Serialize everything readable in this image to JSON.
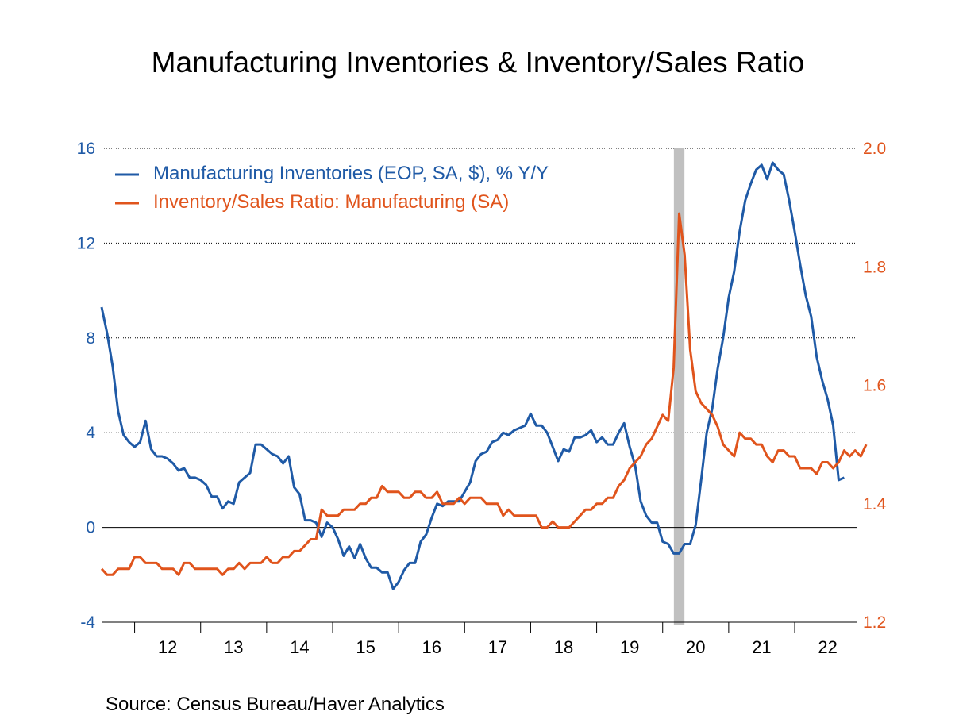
{
  "chart_data": {
    "type": "line",
    "title": "Manufacturing Inventories & Inventory/Sales Ratio",
    "source": "Source:  Census Bureau/Haver Analytics",
    "x_ticks": [
      "12",
      "13",
      "14",
      "15",
      "16",
      "17",
      "18",
      "19",
      "20",
      "21",
      "22"
    ],
    "y_left": {
      "ylim": [
        -4,
        16
      ],
      "ticks": [
        "16",
        "12",
        "8",
        "4",
        "0",
        "-4"
      ]
    },
    "y_right": {
      "ylim": [
        1.2,
        2.0
      ],
      "ticks": [
        "2.0",
        "1.8",
        "1.6",
        "1.4",
        "1.2"
      ]
    },
    "recession_shading": {
      "from": 2020.17,
      "to": 2020.33,
      "color": "#c0c0c0"
    },
    "grid": "horizontal dotted",
    "legend_placement": "top-left",
    "colors": {
      "left_axis": "#1f5aa6",
      "right_axis": "#e0541c"
    },
    "series": [
      {
        "name": "Manufacturing Inventories (EOP, SA, $), % Y/Y",
        "axis": "left",
        "color": "#1f5aa6",
        "x_start": 2011.5,
        "x_step": 0.0833333,
        "values": [
          9.3,
          8.2,
          6.8,
          4.9,
          3.9,
          3.6,
          3.4,
          3.6,
          4.5,
          3.3,
          3.0,
          3.0,
          2.9,
          2.7,
          2.4,
          2.5,
          2.1,
          2.1,
          2.0,
          1.8,
          1.3,
          1.3,
          0.8,
          1.1,
          1.0,
          1.9,
          2.1,
          2.3,
          3.5,
          3.5,
          3.3,
          3.1,
          3.0,
          2.7,
          3.0,
          1.7,
          1.4,
          0.3,
          0.3,
          0.2,
          -0.4,
          0.2,
          0.0,
          -0.5,
          -1.2,
          -0.8,
          -1.3,
          -0.7,
          -1.3,
          -1.7,
          -1.7,
          -1.9,
          -1.9,
          -2.6,
          -2.3,
          -1.8,
          -1.5,
          -1.5,
          -0.6,
          -0.3,
          0.4,
          1.0,
          0.9,
          1.1,
          1.1,
          1.1,
          1.5,
          1.9,
          2.8,
          3.1,
          3.2,
          3.6,
          3.7,
          4.0,
          3.9,
          4.1,
          4.2,
          4.3,
          4.8,
          4.3,
          4.3,
          4.0,
          3.4,
          2.8,
          3.3,
          3.2,
          3.8,
          3.8,
          3.9,
          4.1,
          3.6,
          3.8,
          3.5,
          3.5,
          4.0,
          4.4,
          3.4,
          2.6,
          1.1,
          0.5,
          0.2,
          0.2,
          -0.6,
          -0.7,
          -1.1,
          -1.1,
          -0.7,
          -0.7,
          0.1,
          2.0,
          4.0,
          5.0,
          6.7,
          8.0,
          9.7,
          10.8,
          12.5,
          13.8,
          14.5,
          15.1,
          15.3,
          14.7,
          15.4,
          15.1,
          14.9,
          13.8,
          12.5,
          11.1,
          9.8,
          8.9,
          7.2,
          6.2,
          5.4,
          4.3,
          2.0,
          2.1
        ]
      },
      {
        "name": "Inventory/Sales Ratio: Manufacturing (SA)",
        "axis": "right",
        "color": "#e0541c",
        "x_start": 2011.5,
        "x_step": 0.0833333,
        "values": [
          1.29,
          1.28,
          1.28,
          1.29,
          1.29,
          1.29,
          1.31,
          1.31,
          1.3,
          1.3,
          1.3,
          1.29,
          1.29,
          1.29,
          1.28,
          1.3,
          1.3,
          1.29,
          1.29,
          1.29,
          1.29,
          1.29,
          1.28,
          1.29,
          1.29,
          1.3,
          1.29,
          1.3,
          1.3,
          1.3,
          1.31,
          1.3,
          1.3,
          1.31,
          1.31,
          1.32,
          1.32,
          1.33,
          1.34,
          1.34,
          1.39,
          1.38,
          1.38,
          1.38,
          1.39,
          1.39,
          1.39,
          1.4,
          1.4,
          1.41,
          1.41,
          1.43,
          1.42,
          1.42,
          1.42,
          1.41,
          1.41,
          1.42,
          1.42,
          1.41,
          1.41,
          1.42,
          1.4,
          1.4,
          1.4,
          1.41,
          1.4,
          1.41,
          1.41,
          1.41,
          1.4,
          1.4,
          1.4,
          1.38,
          1.39,
          1.38,
          1.38,
          1.38,
          1.38,
          1.38,
          1.36,
          1.36,
          1.37,
          1.36,
          1.36,
          1.36,
          1.37,
          1.38,
          1.39,
          1.39,
          1.4,
          1.4,
          1.41,
          1.41,
          1.43,
          1.44,
          1.46,
          1.47,
          1.48,
          1.5,
          1.51,
          1.53,
          1.55,
          1.54,
          1.63,
          1.89,
          1.82,
          1.66,
          1.59,
          1.57,
          1.56,
          1.55,
          1.53,
          1.5,
          1.49,
          1.48,
          1.52,
          1.51,
          1.51,
          1.5,
          1.5,
          1.48,
          1.47,
          1.49,
          1.49,
          1.48,
          1.48,
          1.46,
          1.46,
          1.46,
          1.45,
          1.47,
          1.47,
          1.46,
          1.47,
          1.49,
          1.48,
          1.49,
          1.48,
          1.5
        ]
      }
    ]
  }
}
